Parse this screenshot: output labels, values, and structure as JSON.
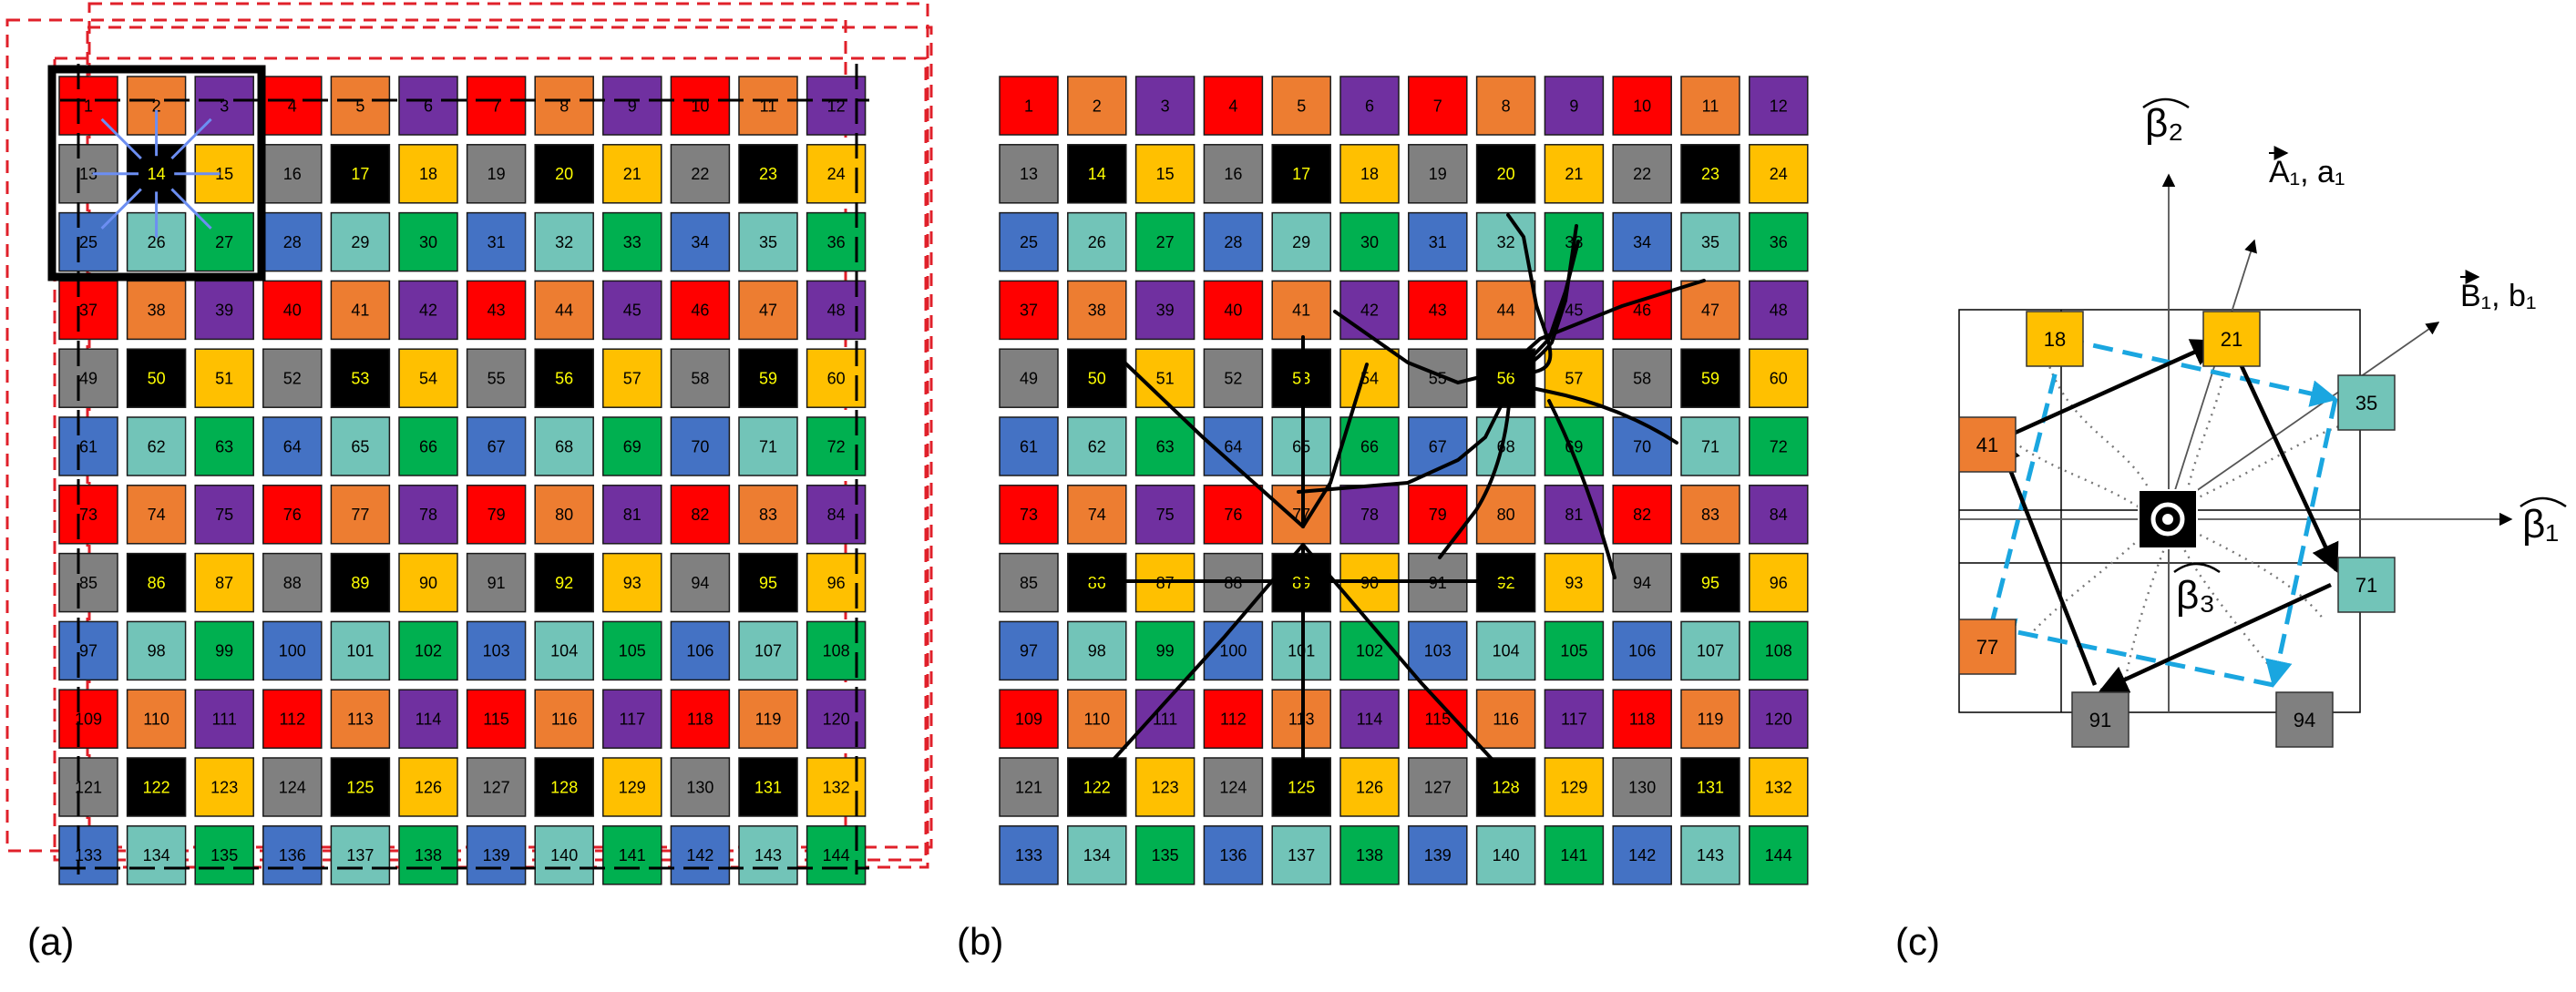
{
  "panels": {
    "a": {
      "label": "(a)"
    },
    "b": {
      "label": "(b)"
    },
    "c": {
      "label": "(c)"
    }
  },
  "colors": {
    "red": "#ff0000",
    "orange": "#ed7d31",
    "purple": "#7030a0",
    "gray": "#808080",
    "black": "#000000",
    "yellow": "#ffc000",
    "blue": "#4472c4",
    "teal": "#72c4b8",
    "green": "#00b050",
    "cell_text_dark": "#000000",
    "cell_text_light": "#ffff00",
    "dashed_red": "#e0202a",
    "dashed_cyan": "#1aa6e0",
    "connector_blue": "#6c8ef2"
  },
  "grid": {
    "rows": [
      [
        "red",
        "orange",
        "purple",
        "red",
        "orange",
        "purple",
        "red",
        "orange",
        "purple",
        "red",
        "orange",
        "purple"
      ],
      [
        "gray",
        "black",
        "yellow",
        "gray",
        "black",
        "yellow",
        "gray",
        "black",
        "yellow",
        "gray",
        "black",
        "yellow"
      ],
      [
        "blue",
        "teal",
        "green",
        "blue",
        "teal",
        "green",
        "blue",
        "teal",
        "green",
        "blue",
        "teal",
        "green"
      ],
      [
        "red",
        "orange",
        "purple",
        "red",
        "orange",
        "purple",
        "red",
        "orange",
        "purple",
        "red",
        "orange",
        "purple"
      ],
      [
        "gray",
        "black",
        "yellow",
        "gray",
        "black",
        "yellow",
        "gray",
        "black",
        "yellow",
        "gray",
        "black",
        "yellow"
      ],
      [
        "blue",
        "teal",
        "green",
        "blue",
        "teal",
        "green",
        "blue",
        "teal",
        "green",
        "blue",
        "teal",
        "green"
      ],
      [
        "red",
        "orange",
        "purple",
        "red",
        "orange",
        "purple",
        "red",
        "orange",
        "purple",
        "red",
        "orange",
        "purple"
      ],
      [
        "gray",
        "black",
        "yellow",
        "gray",
        "black",
        "yellow",
        "gray",
        "black",
        "yellow",
        "gray",
        "black",
        "yellow"
      ],
      [
        "blue",
        "teal",
        "green",
        "blue",
        "teal",
        "green",
        "blue",
        "teal",
        "green",
        "blue",
        "teal",
        "green"
      ],
      [
        "red",
        "orange",
        "purple",
        "red",
        "orange",
        "purple",
        "red",
        "orange",
        "purple",
        "red",
        "orange",
        "purple"
      ],
      [
        "gray",
        "black",
        "yellow",
        "gray",
        "black",
        "yellow",
        "gray",
        "black",
        "yellow",
        "gray",
        "black",
        "yellow"
      ],
      [
        "blue",
        "teal",
        "green",
        "blue",
        "teal",
        "green",
        "blue",
        "teal",
        "green",
        "blue",
        "teal",
        "green"
      ]
    ],
    "numbers": [
      [
        1,
        2,
        3,
        4,
        5,
        6,
        7,
        8,
        9,
        10,
        11,
        12
      ],
      [
        13,
        14,
        15,
        16,
        17,
        18,
        19,
        20,
        21,
        22,
        23,
        24
      ],
      [
        25,
        26,
        27,
        28,
        29,
        30,
        31,
        32,
        33,
        34,
        35,
        36
      ],
      [
        37,
        38,
        39,
        40,
        41,
        42,
        43,
        44,
        45,
        46,
        47,
        48
      ],
      [
        49,
        50,
        51,
        52,
        53,
        54,
        55,
        56,
        57,
        58,
        59,
        60
      ],
      [
        61,
        62,
        63,
        64,
        65,
        66,
        67,
        68,
        69,
        70,
        71,
        72
      ],
      [
        73,
        74,
        75,
        76,
        77,
        78,
        79,
        80,
        81,
        82,
        83,
        84
      ],
      [
        85,
        86,
        87,
        88,
        89,
        90,
        91,
        92,
        93,
        94,
        95,
        96
      ],
      [
        97,
        98,
        99,
        100,
        101,
        102,
        103,
        104,
        105,
        106,
        107,
        108
      ],
      [
        109,
        110,
        111,
        112,
        113,
        114,
        115,
        116,
        117,
        118,
        119,
        120
      ],
      [
        121,
        122,
        123,
        124,
        125,
        126,
        127,
        128,
        129,
        130,
        131,
        132
      ],
      [
        133,
        134,
        135,
        136,
        137,
        138,
        139,
        140,
        141,
        142,
        143,
        144
      ]
    ]
  },
  "panel_b_hubs": [
    {
      "hub": 56,
      "neighbors": [
        18,
        21,
        33,
        41,
        47,
        71,
        77,
        94
      ]
    },
    {
      "hub": 89,
      "neighbors": [
        50,
        53,
        86,
        92,
        122,
        125,
        128
      ]
    }
  ],
  "panel_c": {
    "center_label": "⊙",
    "axis_beta1": "β₁",
    "axis_beta2": "β₂",
    "axis_beta3": "β₃",
    "vector_A": "A₁, a₁",
    "vector_B": "B₁, b₁",
    "nodes": [
      {
        "num": "18",
        "color": "yellow"
      },
      {
        "num": "21",
        "color": "yellow"
      },
      {
        "num": "35",
        "color": "teal"
      },
      {
        "num": "41",
        "color": "orange"
      },
      {
        "num": "71",
        "color": "teal"
      },
      {
        "num": "77",
        "color": "orange"
      },
      {
        "num": "91",
        "color": "gray"
      },
      {
        "num": "94",
        "color": "gray"
      }
    ]
  }
}
